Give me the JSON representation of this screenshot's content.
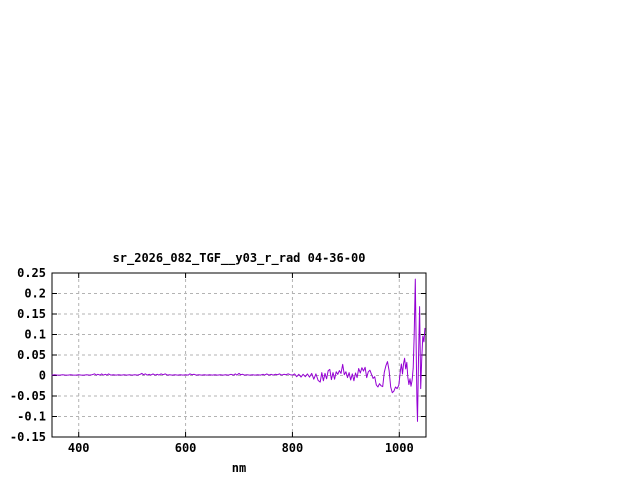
{
  "page": {
    "background": "#ffffff"
  },
  "chart_data": {
    "type": "line",
    "title": "sr_2026_082_TGF__y03_r_rad 04-36-00",
    "xlabel": "nm",
    "ylabel": "",
    "xlim": [
      350,
      1050
    ],
    "ylim": [
      -0.15,
      0.25
    ],
    "xticks": [
      400,
      600,
      800,
      1000
    ],
    "xtick_labels": [
      "400",
      "600",
      "800",
      "1000"
    ],
    "yticks": [
      -0.15,
      -0.1,
      -0.05,
      0,
      0.05,
      0.1,
      0.15,
      0.2,
      0.25
    ],
    "ytick_labels": [
      "-0.15",
      "-0.1",
      "-0.05",
      "0",
      "0.05",
      "0.1",
      "0.15",
      "0.2",
      "0.25"
    ],
    "grid": true,
    "grid_style": "dashed",
    "legend": "none",
    "colors": {
      "line": "#9400d3",
      "grid": "#b3b3b3",
      "border": "#000000",
      "text": "#000000",
      "background": "#ffffff"
    },
    "series": [
      {
        "name": "sr_2026_082_TGF__y03_r_rad",
        "points": [
          [
            350,
            0.001
          ],
          [
            355,
            0.002
          ],
          [
            360,
            0.001
          ],
          [
            365,
            0.001
          ],
          [
            370,
            0.002
          ],
          [
            375,
            0.001
          ],
          [
            380,
            0.001
          ],
          [
            385,
            0.002
          ],
          [
            390,
            0.001
          ],
          [
            395,
            0.001
          ],
          [
            400,
            0.002
          ],
          [
            405,
            0.001
          ],
          [
            410,
            0.001
          ],
          [
            415,
            0.002
          ],
          [
            420,
            0.001
          ],
          [
            425,
            0.002
          ],
          [
            430,
            0.004
          ],
          [
            433,
            0.001
          ],
          [
            436,
            0.003
          ],
          [
            440,
            0.001
          ],
          [
            443,
            0.004
          ],
          [
            446,
            0.001
          ],
          [
            450,
            0.003
          ],
          [
            453,
            0.001
          ],
          [
            456,
            0.004
          ],
          [
            460,
            0.001
          ],
          [
            465,
            0.002
          ],
          [
            470,
            0.001
          ],
          [
            475,
            0.002
          ],
          [
            480,
            0.001
          ],
          [
            485,
            0.002
          ],
          [
            490,
            0.001
          ],
          [
            495,
            0.002
          ],
          [
            500,
            0.001
          ],
          [
            505,
            0.002
          ],
          [
            510,
            0.001
          ],
          [
            515,
            0.003
          ],
          [
            518,
            0.005
          ],
          [
            521,
            0.002
          ],
          [
            525,
            0.004
          ],
          [
            528,
            0.001
          ],
          [
            532,
            0.003
          ],
          [
            535,
            0.001
          ],
          [
            539,
            0.004
          ],
          [
            543,
            0.001
          ],
          [
            547,
            0.003
          ],
          [
            550,
            0.001
          ],
          [
            554,
            0.004
          ],
          [
            558,
            0.002
          ],
          [
            562,
            0.004
          ],
          [
            566,
            0.001
          ],
          [
            570,
            0.002
          ],
          [
            575,
            0.001
          ],
          [
            580,
            0.002
          ],
          [
            585,
            0.001
          ],
          [
            590,
            0.002
          ],
          [
            595,
            0.001
          ],
          [
            600,
            0.002
          ],
          [
            605,
            0.001
          ],
          [
            608,
            0.004
          ],
          [
            612,
            0.002
          ],
          [
            616,
            0.003
          ],
          [
            620,
            0.001
          ],
          [
            625,
            0.002
          ],
          [
            630,
            0.001
          ],
          [
            635,
            0.002
          ],
          [
            640,
            0.001
          ],
          [
            645,
            0.002
          ],
          [
            650,
            0.001
          ],
          [
            655,
            0.002
          ],
          [
            660,
            0.001
          ],
          [
            665,
            0.002
          ],
          [
            670,
            0.001
          ],
          [
            675,
            0.002
          ],
          [
            680,
            0.001
          ],
          [
            685,
            0.003
          ],
          [
            690,
            0.001
          ],
          [
            693,
            0.004
          ],
          [
            696,
            0.001
          ],
          [
            700,
            0.005
          ],
          [
            703,
            0.002
          ],
          [
            707,
            0.003
          ],
          [
            710,
            0.001
          ],
          [
            715,
            0.002
          ],
          [
            720,
            0.001
          ],
          [
            725,
            0.002
          ],
          [
            730,
            0.001
          ],
          [
            735,
            0.002
          ],
          [
            740,
            0.001
          ],
          [
            745,
            0.003
          ],
          [
            748,
            0.001
          ],
          [
            752,
            0.004
          ],
          [
            756,
            0.001
          ],
          [
            760,
            0.003
          ],
          [
            764,
            0.001
          ],
          [
            768,
            0.003
          ],
          [
            772,
            0.002
          ],
          [
            776,
            0.004
          ],
          [
            780,
            0.001
          ],
          [
            784,
            0.003
          ],
          [
            788,
            0.002
          ],
          [
            792,
            0.004
          ],
          [
            796,
            0.002
          ],
          [
            800,
            0.001
          ],
          [
            804,
            0.004
          ],
          [
            808,
            -0.003
          ],
          [
            812,
            0.003
          ],
          [
            816,
            -0.004
          ],
          [
            820,
            0.003
          ],
          [
            824,
            -0.003
          ],
          [
            828,
            0.004
          ],
          [
            832,
            -0.004
          ],
          [
            836,
            0.005
          ],
          [
            840,
            -0.009
          ],
          [
            844,
            0.004
          ],
          [
            848,
            -0.012
          ],
          [
            852,
            -0.016
          ],
          [
            855,
            0.007
          ],
          [
            858,
            -0.013
          ],
          [
            861,
            0.005
          ],
          [
            864,
            -0.008
          ],
          [
            867,
            0.012
          ],
          [
            870,
            0.015
          ],
          [
            873,
            -0.01
          ],
          [
            876,
            0.007
          ],
          [
            879,
            -0.009
          ],
          [
            882,
            0.009
          ],
          [
            885,
            0.003
          ],
          [
            888,
            0.012
          ],
          [
            891,
            0.005
          ],
          [
            894,
            0.027
          ],
          [
            897,
            0.002
          ],
          [
            900,
            0.009
          ],
          [
            903,
            -0.005
          ],
          [
            906,
            0.007
          ],
          [
            909,
            -0.011
          ],
          [
            912,
            0.004
          ],
          [
            915,
            -0.013
          ],
          [
            918,
            0.006
          ],
          [
            921,
            -0.005
          ],
          [
            924,
            0.017
          ],
          [
            927,
            0.006
          ],
          [
            930,
            0.019
          ],
          [
            933,
            0.011
          ],
          [
            936,
            0.02
          ],
          [
            939,
            -0.005
          ],
          [
            942,
            0.009
          ],
          [
            945,
            0.013
          ],
          [
            948,
            0.003
          ],
          [
            951,
            -0.007
          ],
          [
            954,
            -0.003
          ],
          [
            957,
            -0.023
          ],
          [
            960,
            -0.028
          ],
          [
            963,
            -0.02
          ],
          [
            966,
            -0.025
          ],
          [
            969,
            -0.027
          ],
          [
            972,
            0.008
          ],
          [
            975,
            0.024
          ],
          [
            978,
            0.034
          ],
          [
            981,
            0.012
          ],
          [
            984,
            -0.028
          ],
          [
            987,
            -0.042
          ],
          [
            990,
            -0.038
          ],
          [
            993,
            -0.028
          ],
          [
            996,
            -0.032
          ],
          [
            999,
            -0.024
          ],
          [
            1002,
            0.012
          ],
          [
            1004,
            0.028
          ],
          [
            1006,
            0.004
          ],
          [
            1008,
            0.03
          ],
          [
            1010,
            0.042
          ],
          [
            1012,
            0.016
          ],
          [
            1014,
            0.032
          ],
          [
            1016,
            -0.004
          ],
          [
            1018,
            -0.022
          ],
          [
            1020,
            -0.008
          ],
          [
            1022,
            -0.026
          ],
          [
            1024,
            -0.012
          ],
          [
            1026,
            0.018
          ],
          [
            1028,
            0.1
          ],
          [
            1030,
            0.235
          ],
          [
            1032,
            0.03
          ],
          [
            1033,
            -0.06
          ],
          [
            1034,
            -0.112
          ],
          [
            1036,
            0.04
          ],
          [
            1038,
            0.168
          ],
          [
            1040,
            -0.032
          ],
          [
            1042,
            0.038
          ],
          [
            1044,
            0.096
          ],
          [
            1046,
            0.082
          ],
          [
            1048,
            0.115
          ]
        ]
      }
    ]
  }
}
